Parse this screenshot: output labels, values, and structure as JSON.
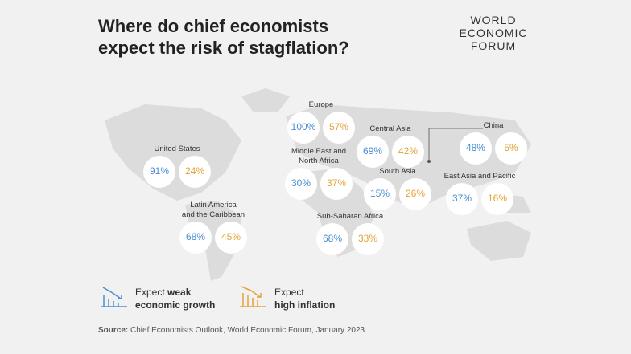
{
  "title": [
    "Where do chief economists",
    "expect the risk of stagflation?"
  ],
  "logo": [
    "WORLD",
    "ECONOMIC",
    "FORUM"
  ],
  "regions": [
    {
      "label": [
        "United States"
      ],
      "growth": "91%",
      "inflation": "24%"
    },
    {
      "label": [
        "Latin America",
        "and the Caribbean"
      ],
      "growth": "68%",
      "inflation": "45%"
    },
    {
      "label": [
        "Europe"
      ],
      "growth": "100%",
      "inflation": "57%"
    },
    {
      "label": [
        "Middle East and",
        "North Africa"
      ],
      "growth": "30%",
      "inflation": "37%"
    },
    {
      "label": [
        "Sub-Saharan Africa"
      ],
      "growth": "68%",
      "inflation": "33%"
    },
    {
      "label": [
        "Central Asia"
      ],
      "growth": "69%",
      "inflation": "42%"
    },
    {
      "label": [
        "South Asia"
      ],
      "growth": "15%",
      "inflation": "26%"
    },
    {
      "label": [
        "China"
      ],
      "growth": "48%",
      "inflation": "5%"
    },
    {
      "label": [
        "East Asia and Pacific"
      ],
      "growth": "37%",
      "inflation": "16%"
    }
  ],
  "legend": {
    "growth": {
      "prefix": "Expect",
      "bold1": "weak",
      "bold2": "economic growth"
    },
    "inflation": {
      "prefix": "Expect",
      "bold2": "high inflation"
    }
  },
  "source": {
    "label": "Source:",
    "text": "Chief Economists Outlook, World Economic Forum, January 2023"
  }
}
